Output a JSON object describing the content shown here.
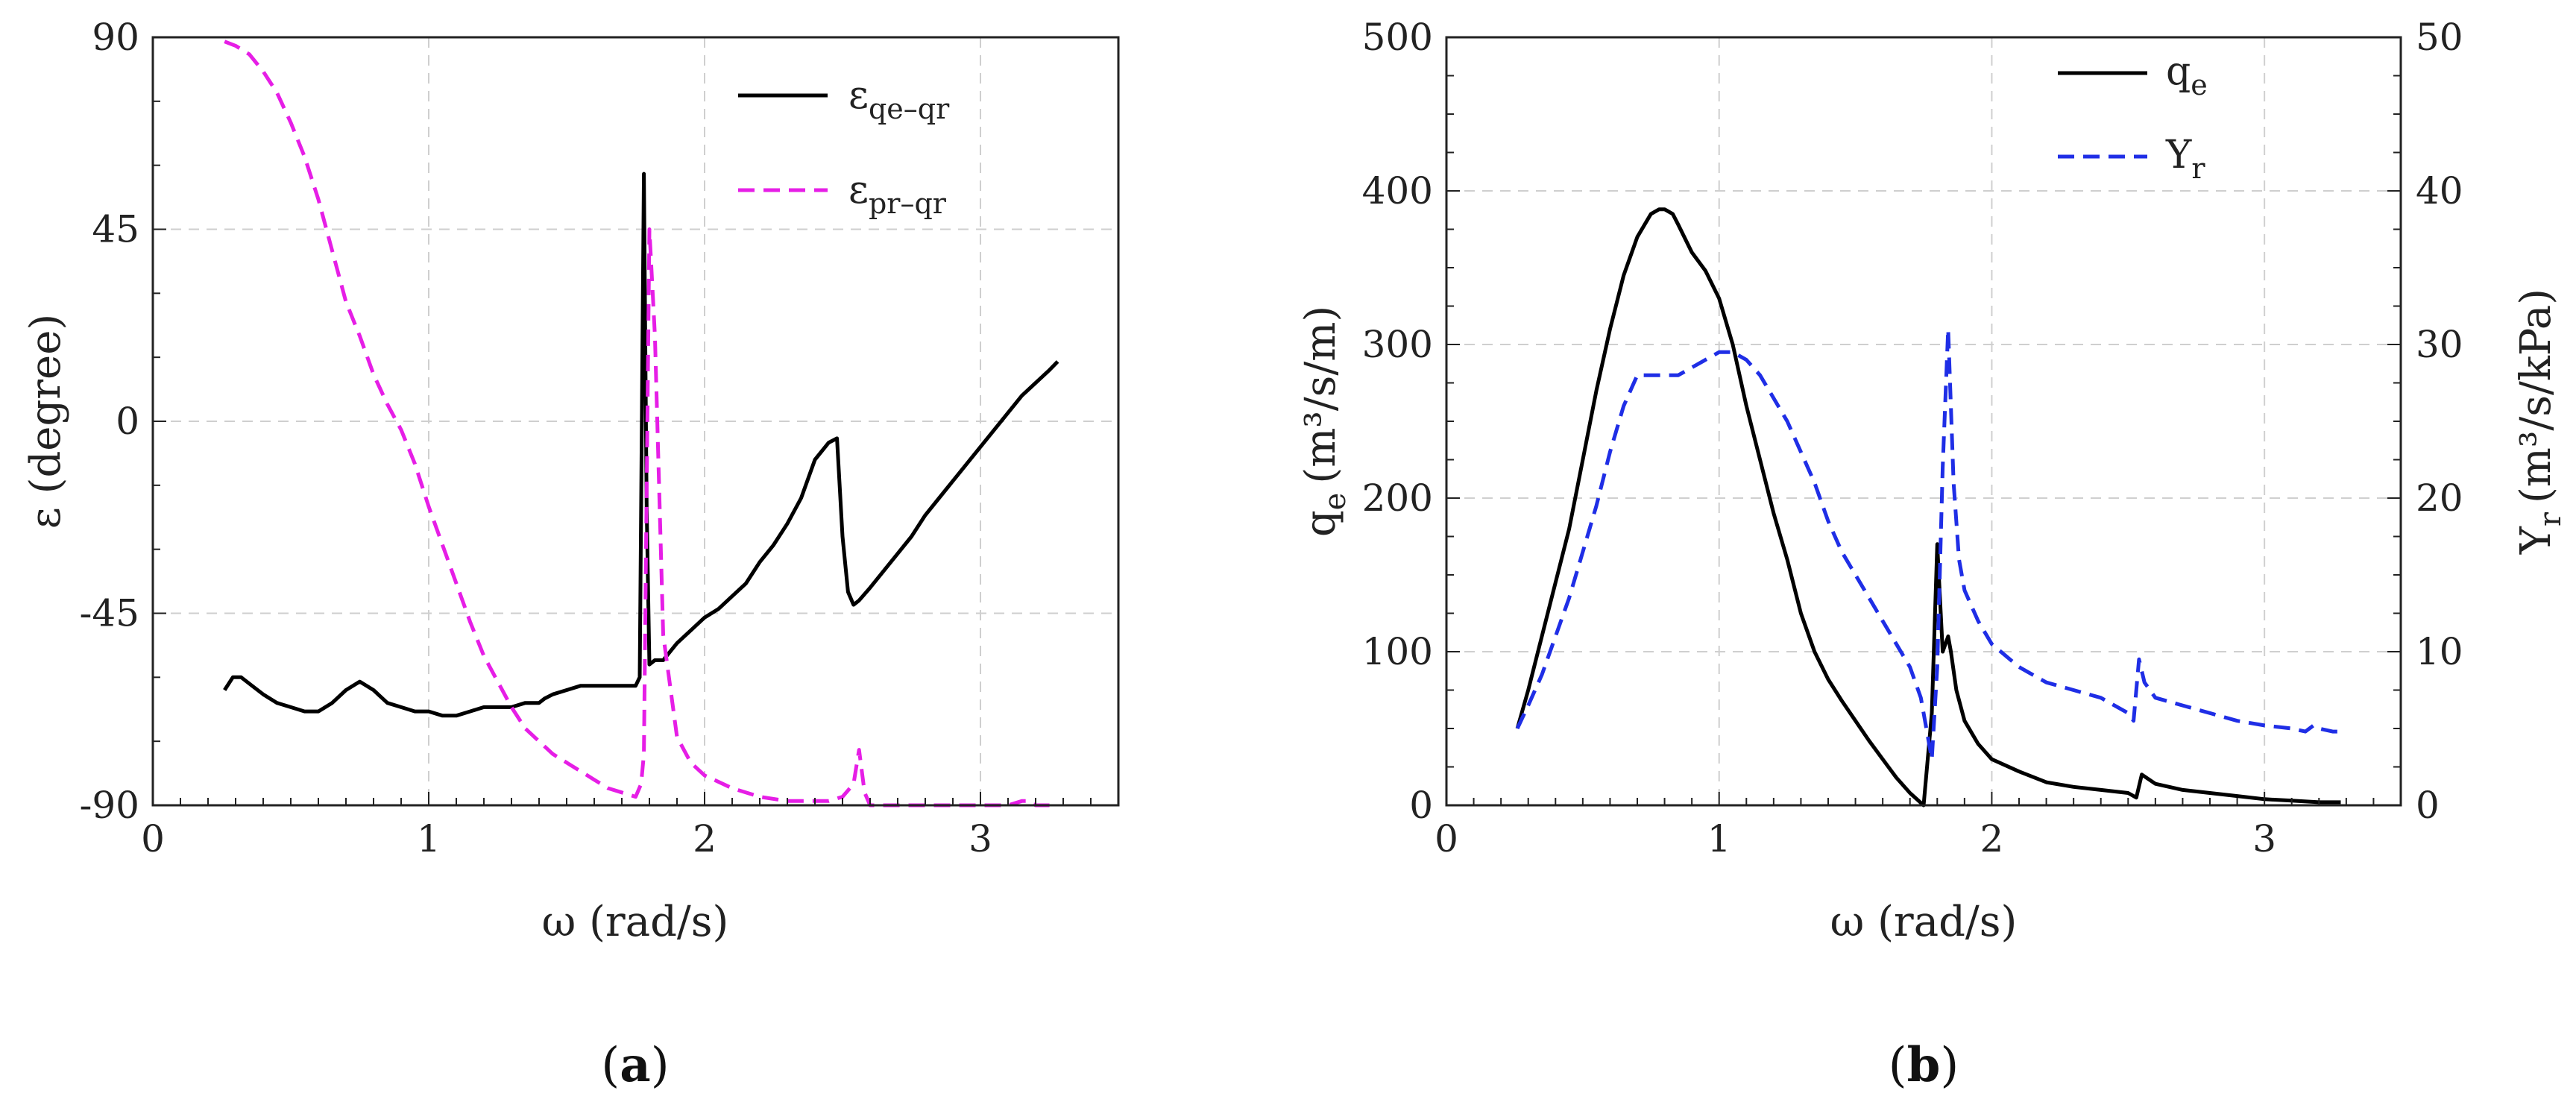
{
  "chart_data": [
    {
      "id": "a",
      "type": "line",
      "caption": "a",
      "xlabel": "ω (rad/s)",
      "ylabel": "ε (degree)",
      "xlim": [
        0,
        3.5
      ],
      "ylim": [
        -90,
        90
      ],
      "xticks": [
        "0",
        "1",
        "2",
        "3"
      ],
      "yticks": [
        "-90",
        "-45",
        "0",
        "45",
        "90"
      ],
      "legend_position": "top-right",
      "series": [
        {
          "name": "ε",
          "subscript": "qe–qr",
          "color": "#000000",
          "dash": "solid",
          "x": [
            0.26,
            0.29,
            0.32,
            0.36,
            0.4,
            0.45,
            0.5,
            0.55,
            0.6,
            0.65,
            0.7,
            0.75,
            0.8,
            0.85,
            0.9,
            0.95,
            1.0,
            1.05,
            1.1,
            1.15,
            1.2,
            1.25,
            1.3,
            1.35,
            1.4,
            1.42,
            1.45,
            1.5,
            1.55,
            1.6,
            1.65,
            1.7,
            1.75,
            1.765,
            1.78,
            1.79,
            1.8,
            1.82,
            1.85,
            1.9,
            1.95,
            2.0,
            2.05,
            2.1,
            2.15,
            2.2,
            2.25,
            2.3,
            2.35,
            2.4,
            2.45,
            2.48,
            2.5,
            2.52,
            2.54,
            2.56,
            2.6,
            2.65,
            2.7,
            2.75,
            2.8,
            2.85,
            2.9,
            2.95,
            3.0,
            3.05,
            3.1,
            3.15,
            3.2,
            3.25,
            3.28
          ],
          "y": [
            -63,
            -60,
            -60,
            -62,
            -64,
            -66,
            -67,
            -68,
            -68,
            -66,
            -63,
            -61,
            -63,
            -66,
            -67,
            -68,
            -68,
            -69,
            -69,
            -68,
            -67,
            -67,
            -67,
            -66,
            -66,
            -65,
            -64,
            -63,
            -62,
            -62,
            -62,
            -62,
            -62,
            -60,
            58,
            -20,
            -57,
            -56,
            -56,
            -52,
            -49,
            -46,
            -44,
            -41,
            -38,
            -33,
            -29,
            -24,
            -18,
            -9,
            -5,
            -4,
            -27,
            -40,
            -43,
            -42,
            -39,
            -35,
            -31,
            -27,
            -22,
            -18,
            -14,
            -10,
            -6,
            -2,
            2,
            6,
            9,
            12,
            14
          ]
        },
        {
          "name": "ε",
          "subscript": "pr–qr",
          "color": "#e61ee6",
          "dash": "dashed",
          "x": [
            0.26,
            0.3,
            0.35,
            0.4,
            0.45,
            0.5,
            0.55,
            0.6,
            0.65,
            0.7,
            0.75,
            0.8,
            0.85,
            0.9,
            0.95,
            1.0,
            1.05,
            1.1,
            1.15,
            1.2,
            1.25,
            1.3,
            1.35,
            1.4,
            1.45,
            1.5,
            1.55,
            1.6,
            1.65,
            1.7,
            1.75,
            1.77,
            1.78,
            1.8,
            1.82,
            1.85,
            1.9,
            1.95,
            2.0,
            2.1,
            2.2,
            2.3,
            2.4,
            2.45,
            2.5,
            2.54,
            2.56,
            2.58,
            2.6,
            2.7,
            2.8,
            2.9,
            3.0,
            3.1,
            3.15,
            3.18,
            3.2,
            3.25
          ],
          "y": [
            89,
            88,
            86,
            82,
            77,
            70,
            62,
            52,
            40,
            28,
            20,
            11,
            4,
            -2,
            -10,
            -20,
            -29,
            -38,
            -47,
            -55,
            -61,
            -67,
            -72,
            -75,
            -78,
            -80,
            -82,
            -84,
            -86,
            -87,
            -88,
            -85,
            -78,
            45,
            20,
            -50,
            -74,
            -80,
            -83,
            -86,
            -88,
            -89,
            -89,
            -89,
            -88,
            -85,
            -77,
            -87,
            -90,
            -90,
            -90,
            -90,
            -90,
            -90,
            -89,
            -89,
            -90,
            -90
          ]
        }
      ]
    },
    {
      "id": "b",
      "type": "line",
      "caption": "b",
      "xlabel": "ω (rad/s)",
      "ylabel_left": "q",
      "ylabel_left_sub": "e",
      "ylabel_left_unit": "(m³/s/m)",
      "ylabel_right": "Y",
      "ylabel_right_sub": "r",
      "ylabel_right_unit": "(m³/s/kPa)",
      "xlim": [
        0,
        3.5
      ],
      "ylim_left": [
        0,
        500
      ],
      "ylim_right": [
        0,
        50
      ],
      "xticks": [
        "0",
        "1",
        "2",
        "3"
      ],
      "yticks_left": [
        "0",
        "100",
        "200",
        "300",
        "400",
        "500"
      ],
      "yticks_right": [
        "0",
        "10",
        "20",
        "30",
        "40",
        "50"
      ],
      "legend_position": "top-right",
      "series": [
        {
          "name": "q",
          "subscript": "e",
          "axis": "left",
          "color": "#000000",
          "dash": "solid",
          "x": [
            0.26,
            0.3,
            0.35,
            0.4,
            0.45,
            0.5,
            0.55,
            0.6,
            0.65,
            0.7,
            0.75,
            0.78,
            0.8,
            0.83,
            0.85,
            0.9,
            0.95,
            1.0,
            1.05,
            1.1,
            1.15,
            1.2,
            1.25,
            1.3,
            1.35,
            1.4,
            1.45,
            1.5,
            1.55,
            1.6,
            1.65,
            1.7,
            1.75,
            1.78,
            1.8,
            1.82,
            1.84,
            1.85,
            1.87,
            1.9,
            1.95,
            2.0,
            2.1,
            2.2,
            2.3,
            2.4,
            2.5,
            2.53,
            2.55,
            2.6,
            2.7,
            2.8,
            2.9,
            3.0,
            3.1,
            3.2,
            3.28
          ],
          "y": [
            50,
            75,
            110,
            145,
            180,
            225,
            270,
            310,
            345,
            370,
            385,
            388,
            388,
            385,
            378,
            360,
            348,
            330,
            300,
            260,
            225,
            190,
            160,
            125,
            100,
            82,
            68,
            55,
            42,
            30,
            18,
            8,
            0,
            60,
            170,
            100,
            110,
            100,
            75,
            55,
            40,
            30,
            22,
            15,
            12,
            10,
            8,
            5,
            20,
            14,
            10,
            8,
            6,
            4,
            3,
            2,
            2
          ]
        },
        {
          "name": "Y",
          "subscript": "r",
          "axis": "right",
          "color": "#1f2ee6",
          "dash": "dashed",
          "x": [
            0.26,
            0.3,
            0.35,
            0.4,
            0.45,
            0.5,
            0.55,
            0.6,
            0.65,
            0.7,
            0.75,
            0.8,
            0.85,
            0.9,
            0.95,
            1.0,
            1.05,
            1.1,
            1.15,
            1.2,
            1.25,
            1.3,
            1.35,
            1.4,
            1.45,
            1.5,
            1.55,
            1.6,
            1.65,
            1.7,
            1.74,
            1.76,
            1.78,
            1.8,
            1.82,
            1.84,
            1.86,
            1.88,
            1.9,
            1.95,
            2.0,
            2.1,
            2.2,
            2.3,
            2.4,
            2.5,
            2.52,
            2.54,
            2.56,
            2.6,
            2.7,
            2.8,
            2.9,
            3.0,
            3.1,
            3.15,
            3.18,
            3.2,
            3.25,
            3.28
          ],
          "y": [
            5,
            6.5,
            8.5,
            11,
            13.5,
            16.5,
            19.5,
            23,
            26,
            28,
            28,
            28,
            28,
            28.5,
            29,
            29.5,
            29.5,
            29,
            28,
            26.5,
            25,
            23,
            21,
            18.5,
            16.5,
            15,
            13.5,
            12,
            10.5,
            9,
            7,
            5,
            3,
            9,
            22,
            31,
            21,
            16,
            14,
            12,
            10.5,
            9,
            8,
            7.5,
            7,
            6,
            5.5,
            9.5,
            8,
            7,
            6.5,
            6,
            5.5,
            5.2,
            5,
            4.8,
            5.2,
            5,
            4.8,
            4.8
          ]
        }
      ]
    }
  ]
}
